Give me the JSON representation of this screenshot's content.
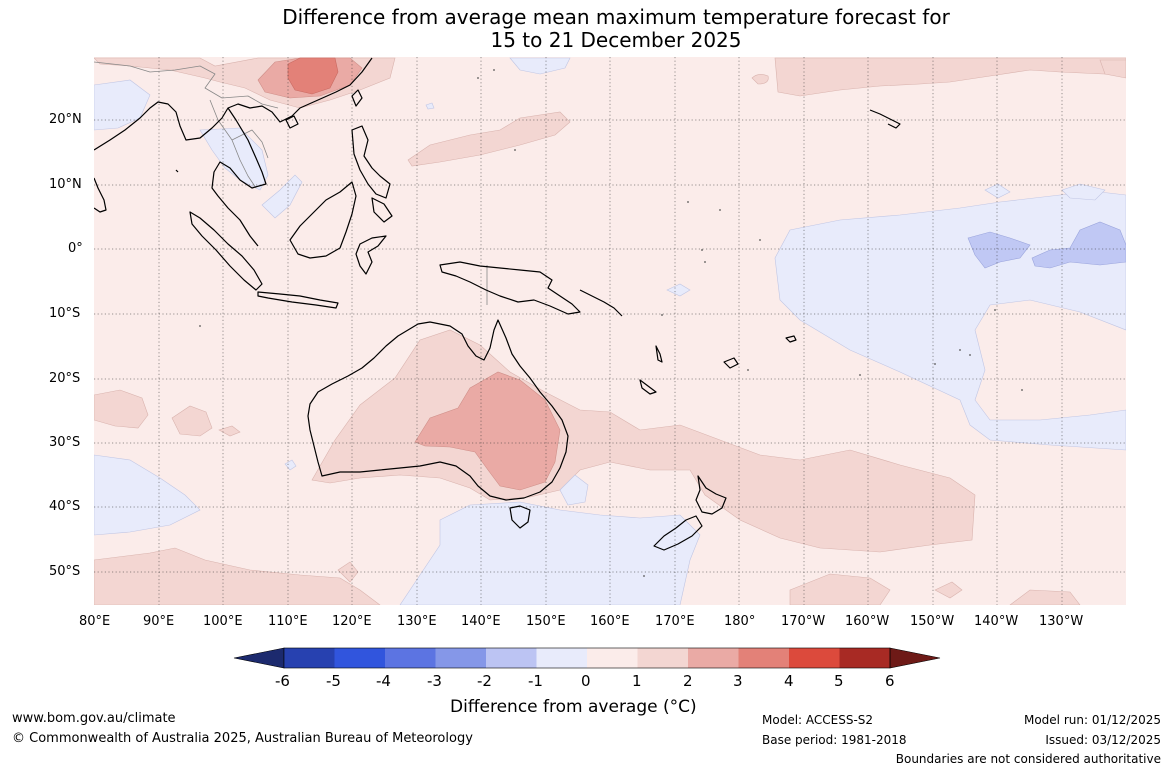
{
  "title_line1": "Difference from average mean maximum temperature forecast for",
  "title_line2": "15 to 21 December 2025",
  "lat_labels": [
    "20°N",
    "10°N",
    "0°",
    "10°S",
    "20°S",
    "30°S",
    "40°S",
    "50°S"
  ],
  "lon_labels": [
    "80°E",
    "90°E",
    "100°E",
    "110°E",
    "120°E",
    "130°E",
    "140°E",
    "150°E",
    "160°E",
    "170°E",
    "180°",
    "170°W",
    "160°W",
    "150°W",
    "140°W",
    "130°W"
  ],
  "colorbar": {
    "title": "Difference from average (°C)",
    "tick_labels": [
      "-6",
      "-5",
      "-4",
      "-3",
      "-2",
      "-1",
      "0",
      "1",
      "2",
      "3",
      "4",
      "5",
      "6"
    ],
    "colors": [
      "#1c2a6e",
      "#2741b0",
      "#3155dd",
      "#5c74e2",
      "#8597e8",
      "#bcc4f3",
      "#e8ebfb",
      "#fbecea",
      "#f3d6d2",
      "#eaaaa5",
      "#e38178",
      "#dc4a3c",
      "#a82a24",
      "#6e1a17"
    ]
  },
  "footer": {
    "website": "www.bom.gov.au/climate",
    "copyright": "© Commonwealth of Australia 2025, Australian Bureau of Meteorology",
    "model": "Model: ACCESS-S2",
    "base_period": "Base period: 1981-2018",
    "model_run": "Model run: 01/12/2025",
    "issued": "Issued: 03/12/2025",
    "disclaimer": "Boundaries are not considered authoritative"
  }
}
